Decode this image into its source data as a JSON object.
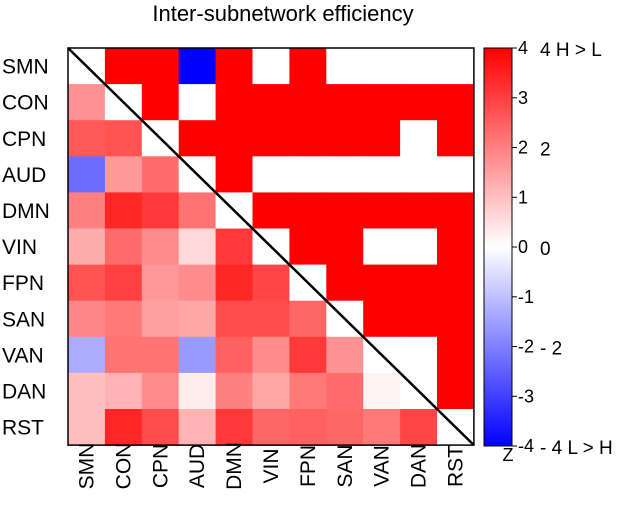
{
  "chart_data": {
    "type": "heatmap",
    "title": "Inter-subnetwork efficiency",
    "labels": [
      "SMN",
      "CON",
      "CPN",
      "AUD",
      "DMN",
      "VIN",
      "FPN",
      "SAN",
      "VAN",
      "DAN",
      "RST"
    ],
    "upper_triangle_note": "significance: 4 = H > L (red), -4 = L > H (blue), 0 = not significant (white)",
    "upper_triangle": [
      [
        null,
        4,
        4,
        -4,
        4,
        0,
        4,
        0,
        0,
        0,
        0
      ],
      [
        null,
        null,
        4,
        0,
        4,
        4,
        4,
        4,
        4,
        4,
        4
      ],
      [
        null,
        null,
        null,
        4,
        4,
        4,
        4,
        4,
        4,
        0,
        4
      ],
      [
        null,
        null,
        null,
        null,
        4,
        0,
        0,
        0,
        0,
        0,
        0
      ],
      [
        null,
        null,
        null,
        null,
        null,
        4,
        4,
        4,
        4,
        4,
        4
      ],
      [
        null,
        null,
        null,
        null,
        null,
        null,
        4,
        4,
        0,
        0,
        4
      ],
      [
        null,
        null,
        null,
        null,
        null,
        null,
        null,
        4,
        4,
        4,
        4
      ],
      [
        null,
        null,
        null,
        null,
        null,
        null,
        null,
        null,
        4,
        4,
        4
      ],
      [
        null,
        null,
        null,
        null,
        null,
        null,
        null,
        null,
        null,
        0,
        4
      ],
      [
        null,
        null,
        null,
        null,
        null,
        null,
        null,
        null,
        null,
        null,
        4
      ],
      [
        null,
        null,
        null,
        null,
        null,
        null,
        null,
        null,
        null,
        null,
        null
      ]
    ],
    "lower_triangle_note": "Z values",
    "lower_triangle": [
      [
        null,
        null,
        null,
        null,
        null,
        null,
        null,
        null,
        null,
        null,
        null
      ],
      [
        1.7,
        null,
        null,
        null,
        null,
        null,
        null,
        null,
        null,
        null,
        null
      ],
      [
        2.6,
        2.7,
        null,
        null,
        null,
        null,
        null,
        null,
        null,
        null,
        null
      ],
      [
        -2.3,
        1.6,
        2.3,
        null,
        null,
        null,
        null,
        null,
        null,
        null,
        null
      ],
      [
        2.0,
        3.4,
        3.1,
        2.2,
        null,
        null,
        null,
        null,
        null,
        null,
        null
      ],
      [
        1.3,
        2.3,
        1.8,
        0.6,
        3.1,
        null,
        null,
        null,
        null,
        null,
        null
      ],
      [
        2.7,
        3.0,
        1.6,
        1.8,
        3.4,
        2.9,
        null,
        null,
        null,
        null,
        null
      ],
      [
        1.9,
        2.1,
        1.5,
        1.4,
        2.8,
        2.8,
        2.4,
        null,
        null,
        null,
        null
      ],
      [
        -1.3,
        2.2,
        2.2,
        -1.6,
        2.5,
        1.8,
        3.1,
        1.7,
        null,
        null,
        null
      ],
      [
        1.0,
        1.2,
        1.8,
        0.3,
        2.0,
        1.4,
        2.1,
        2.3,
        0.2,
        null,
        null
      ],
      [
        1.0,
        3.4,
        2.8,
        1.2,
        3.1,
        2.4,
        2.5,
        2.4,
        2.1,
        2.9,
        null
      ]
    ],
    "colorbar": {
      "min": -4,
      "max": 4,
      "ticks": [
        4,
        3,
        2,
        1,
        0,
        -1,
        -2,
        -3,
        -4
      ],
      "label": "Z",
      "colors": {
        "low": "#0000ff",
        "mid": "#ffffff",
        "high": "#ff0000"
      }
    },
    "side_labels": [
      {
        "text": "4  H > L",
        "value": 4
      },
      {
        "text": "2",
        "value": 2
      },
      {
        "text": "0",
        "value": 0
      },
      {
        "text": "- 2",
        "value": -2
      },
      {
        "text": "- 4 L > H",
        "value": -4
      }
    ]
  }
}
